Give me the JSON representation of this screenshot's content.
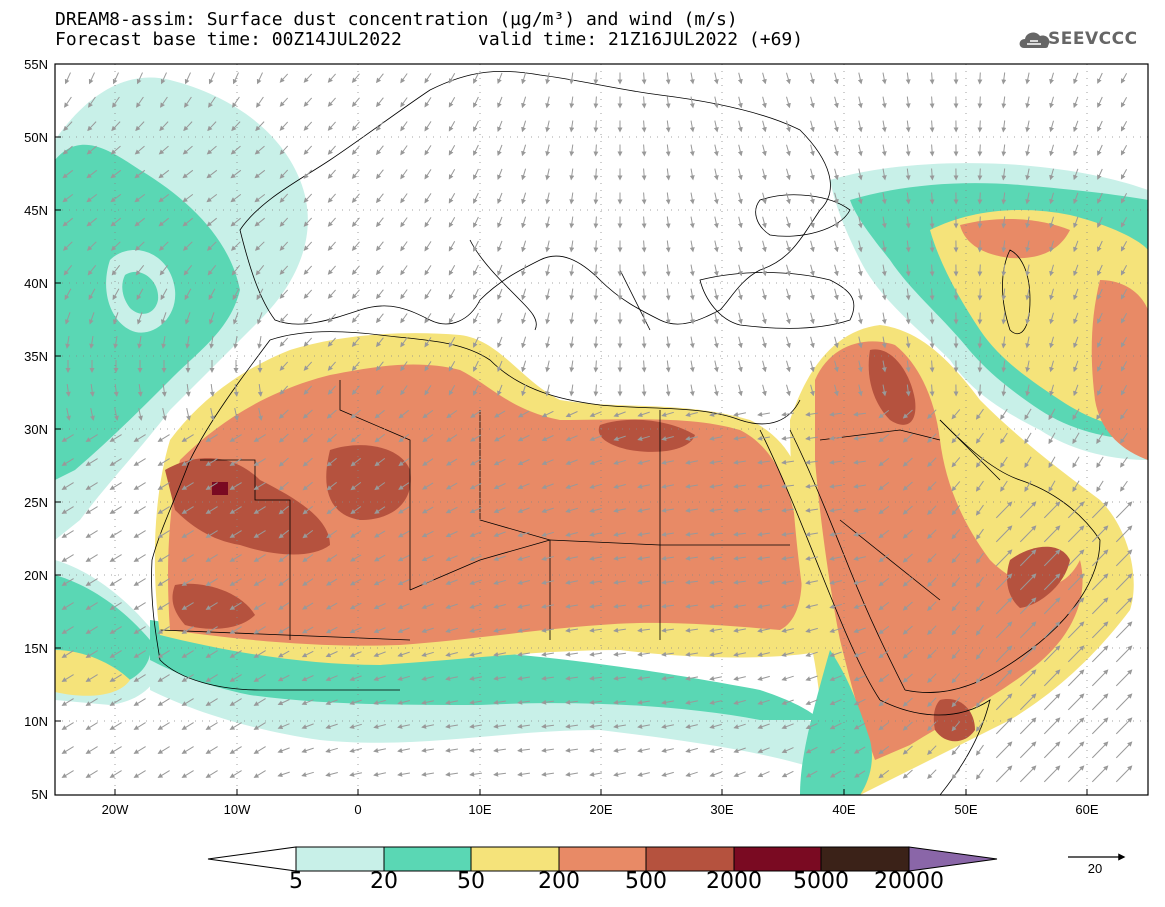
{
  "title": {
    "line1": "DREAM8-assim: Surface dust concentration (µg/m³) and wind (m/s)",
    "line2": "Forecast base time: 00Z14JUL2022",
    "valid": "valid time: 21Z16JUL2022 (+69)"
  },
  "logo": {
    "text": "SEEVCCC",
    "icon": "cloud-icon"
  },
  "map": {
    "region": "North Africa, Europe and Middle East",
    "lon_range": [
      -25,
      65
    ],
    "lat_range": [
      5,
      55
    ],
    "lat_labels": [
      "55N",
      "50N",
      "45N",
      "40N",
      "35N",
      "30N",
      "25N",
      "20N",
      "15N",
      "10N",
      "5N"
    ],
    "lon_labels": [
      "20W",
      "10W",
      "0",
      "10E",
      "20E",
      "30E",
      "40E",
      "50E",
      "60E"
    ],
    "grid": "dotted",
    "wind_vectors": true
  },
  "colorbar": {
    "labels": [
      "5",
      "20",
      "50",
      "200",
      "500",
      "2000",
      "5000",
      "20000"
    ],
    "colors": [
      "#ffffff",
      "#c8f0e8",
      "#5ad7b4",
      "#f5e37a",
      "#e88a66",
      "#b5523e",
      "#7a0a22",
      "#3b2218",
      "#8a66a8"
    ]
  },
  "reference_vector": {
    "label": "20"
  }
}
